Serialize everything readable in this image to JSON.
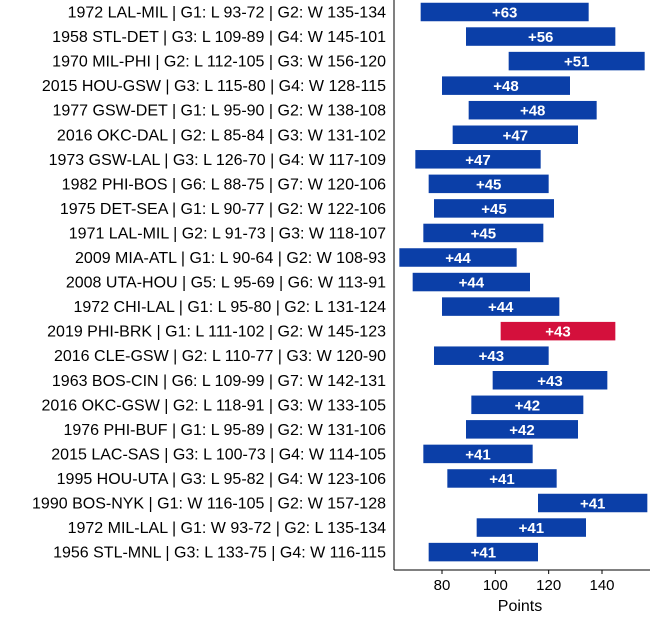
{
  "chart_data": {
    "type": "bar",
    "orientation": "horizontal",
    "xlabel": "Points",
    "ylabel": "",
    "title": "",
    "xlim": [
      62,
      158
    ],
    "xticks": [
      80,
      100,
      120,
      140
    ],
    "grid": false,
    "colors": {
      "default": "#0b3fa8",
      "highlight": "#d4103c"
    },
    "bars": [
      {
        "category": "1972 LAL-MIL | G1: L 93-72 | G2: W 135-134",
        "start": 72,
        "end": 135,
        "label": "+63",
        "highlight": false
      },
      {
        "category": "1958 STL-DET | G3: L 109-89 | G4: W 145-101",
        "start": 89,
        "end": 145,
        "label": "+56",
        "highlight": false
      },
      {
        "category": "1970 MIL-PHI | G2: L 112-105 | G3: W 156-120",
        "start": 105,
        "end": 156,
        "label": "+51",
        "highlight": false
      },
      {
        "category": "2015 HOU-GSW | G3: L 115-80 | G4: W 128-115",
        "start": 80,
        "end": 128,
        "label": "+48",
        "highlight": false
      },
      {
        "category": "1977 GSW-DET | G1: L 95-90 | G2: W 138-108",
        "start": 90,
        "end": 138,
        "label": "+48",
        "highlight": false
      },
      {
        "category": "2016 OKC-DAL | G2: L 85-84 | G3: W 131-102",
        "start": 84,
        "end": 131,
        "label": "+47",
        "highlight": false
      },
      {
        "category": "1973 GSW-LAL | G3: L 126-70 | G4: W 117-109",
        "start": 70,
        "end": 117,
        "label": "+47",
        "highlight": false
      },
      {
        "category": "1982 PHI-BOS | G6: L 88-75 | G7: W 120-106",
        "start": 75,
        "end": 120,
        "label": "+45",
        "highlight": false
      },
      {
        "category": "1975 DET-SEA | G1: L 90-77 | G2: W 122-106",
        "start": 77,
        "end": 122,
        "label": "+45",
        "highlight": false
      },
      {
        "category": "1971 LAL-MIL | G2: L 91-73 | G3: W 118-107",
        "start": 73,
        "end": 118,
        "label": "+45",
        "highlight": false
      },
      {
        "category": "2009 MIA-ATL | G1: L 90-64 | G2: W 108-93",
        "start": 64,
        "end": 108,
        "label": "+44",
        "highlight": false
      },
      {
        "category": "2008 UTA-HOU | G5: L 95-69 | G6: W 113-91",
        "start": 69,
        "end": 113,
        "label": "+44",
        "highlight": false
      },
      {
        "category": "1972 CHI-LAL | G1: L 95-80 | G2: L 131-124",
        "start": 80,
        "end": 124,
        "label": "+44",
        "highlight": false
      },
      {
        "category": "2019 PHI-BRK | G1: L 111-102 | G2: W 145-123",
        "start": 102,
        "end": 145,
        "label": "+43",
        "highlight": true
      },
      {
        "category": "2016 CLE-GSW | G2: L 110-77 | G3: W 120-90",
        "start": 77,
        "end": 120,
        "label": "+43",
        "highlight": false
      },
      {
        "category": "1963 BOS-CIN | G6: L 109-99 | G7: W 142-131",
        "start": 99,
        "end": 142,
        "label": "+43",
        "highlight": false
      },
      {
        "category": "2016 OKC-GSW | G2: L 118-91 | G3: W 133-105",
        "start": 91,
        "end": 133,
        "label": "+42",
        "highlight": false
      },
      {
        "category": "1976 PHI-BUF | G1: L 95-89 | G2: W 131-106",
        "start": 89,
        "end": 131,
        "label": "+42",
        "highlight": false
      },
      {
        "category": "2015 LAC-SAS | G3: L 100-73 | G4: W 114-105",
        "start": 73,
        "end": 114,
        "label": "+41",
        "highlight": false
      },
      {
        "category": "1995 HOU-UTA | G3: L 95-82 | G4: W 123-106",
        "start": 82,
        "end": 123,
        "label": "+41",
        "highlight": false
      },
      {
        "category": "1990 BOS-NYK | G1: W 116-105 | G2: W 157-128",
        "start": 116,
        "end": 157,
        "label": "+41",
        "highlight": false
      },
      {
        "category": "1972 MIL-LAL | G1: W 93-72 | G2: L 135-134",
        "start": 93,
        "end": 134,
        "label": "+41",
        "highlight": false
      },
      {
        "category": "1956 STL-MNL | G3: L 133-75 | G4: W 116-115",
        "start": 75,
        "end": 116,
        "label": "+41",
        "highlight": false
      }
    ]
  }
}
